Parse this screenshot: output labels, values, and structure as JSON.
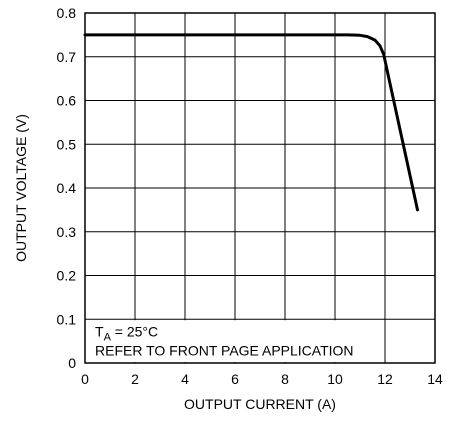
{
  "chart_data": {
    "type": "line",
    "title": "",
    "xlabel": "OUTPUT CURRENT (A)",
    "ylabel": "OUTPUT VOLTAGE (V)",
    "xlim": [
      0,
      14
    ],
    "ylim": [
      0,
      0.8
    ],
    "xticks": [
      "0",
      "2",
      "4",
      "6",
      "8",
      "10",
      "12",
      "14"
    ],
    "yticks": [
      "0",
      "0.1",
      "0.2",
      "0.3",
      "0.4",
      "0.5",
      "0.6",
      "0.7",
      "0.8"
    ],
    "grid": true,
    "series": [
      {
        "name": "",
        "x": [
          0,
          10.5,
          11.0,
          11.3,
          11.6,
          11.8,
          11.95,
          12.1,
          13.3
        ],
        "y": [
          0.75,
          0.75,
          0.749,
          0.746,
          0.738,
          0.725,
          0.705,
          0.665,
          0.35
        ]
      }
    ],
    "annotation": {
      "temp_prefix": "T",
      "temp_sub": "A",
      "temp_suffix": " = 25°C",
      "note": "REFER TO FRONT PAGE APPLICATION"
    }
  }
}
